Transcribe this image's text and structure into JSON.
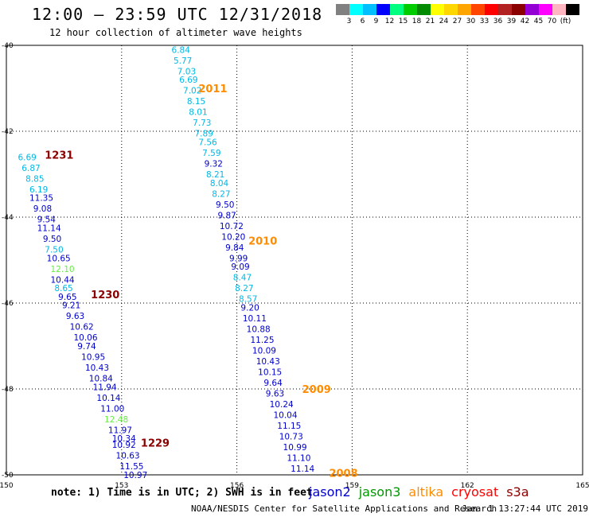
{
  "header": {
    "title": "12:00 – 23:59 UTC 12/31/2018",
    "subtitle": "12 hour collection of altimeter wave heights"
  },
  "legend": {
    "colors": [
      "#808080",
      "#00ffff",
      "#00bfff",
      "#0000ff",
      "#00ff7f",
      "#00cd00",
      "#008b00",
      "#ffff00",
      "#ffd700",
      "#ffa500",
      "#ff4500",
      "#ff0000",
      "#b22222",
      "#8b0000",
      "#9400d3",
      "#ff00ff",
      "#ffb6c1",
      "#000000"
    ],
    "labels": [
      "3",
      "6",
      "9",
      "12",
      "15",
      "18",
      "21",
      "24",
      "27",
      "30",
      "33",
      "36",
      "39",
      "42",
      "45",
      "70",
      "(ft)"
    ]
  },
  "chart_data": {
    "type": "scatter",
    "lon_range": [
      150,
      165
    ],
    "lat_range": [
      -50,
      -40
    ],
    "lon_ticks": [
      {
        "value": 150,
        "label": "150"
      },
      {
        "value": 153,
        "label": "153"
      },
      {
        "value": 156,
        "label": "156"
      },
      {
        "value": 159,
        "label": "159"
      },
      {
        "value": 162,
        "label": "162"
      },
      {
        "value": 165,
        "label": "165"
      }
    ],
    "lat_ticks": [
      {
        "value": -40,
        "label": "-40"
      },
      {
        "value": -42,
        "label": "-42"
      },
      {
        "value": -44,
        "label": "-44"
      },
      {
        "value": -46,
        "label": "-46"
      },
      {
        "value": -48,
        "label": "-48"
      },
      {
        "value": -50,
        "label": "-50"
      }
    ],
    "time_labels": [
      {
        "text": "1231",
        "lon": 151.0,
        "lat": -42.55,
        "color": "#8b0000"
      },
      {
        "text": "1230",
        "lon": 152.2,
        "lat": -45.8,
        "color": "#8b0000"
      },
      {
        "text": "1229",
        "lon": 153.5,
        "lat": -49.25,
        "color": "#8b0000"
      },
      {
        "text": "2011",
        "lon": 155.0,
        "lat": -41.0,
        "color": "#ff8c00"
      },
      {
        "text": "2010",
        "lon": 156.3,
        "lat": -44.55,
        "color": "#ff8c00"
      },
      {
        "text": "2009",
        "lon": 157.7,
        "lat": -48.0,
        "color": "#ff8c00"
      },
      {
        "text": "2008",
        "lon": 158.4,
        "lat": -49.95,
        "color": "#ff8c00"
      }
    ],
    "series": [
      {
        "points": [
          {
            "lon": 150.3,
            "lat": -42.6,
            "v": "6.69",
            "color": "#00b8e6"
          },
          {
            "lon": 150.4,
            "lat": -42.85,
            "v": "6.87",
            "color": "#00b8e6"
          },
          {
            "lon": 150.5,
            "lat": -43.1,
            "v": "8.85",
            "color": "#00b8e6"
          },
          {
            "lon": 150.6,
            "lat": -43.35,
            "v": "6.19",
            "color": "#00b8e6"
          },
          {
            "lon": 150.6,
            "lat": -43.55,
            "v": "11.35",
            "color": "#0000cd"
          },
          {
            "lon": 150.7,
            "lat": -43.8,
            "v": "9.08",
            "color": "#0000cd"
          },
          {
            "lon": 150.8,
            "lat": -44.05,
            "v": "9.54",
            "color": "#0000cd"
          },
          {
            "lon": 150.8,
            "lat": -44.25,
            "v": "11.14",
            "color": "#0000cd"
          },
          {
            "lon": 150.95,
            "lat": -44.5,
            "v": "9.50",
            "color": "#0000cd"
          },
          {
            "lon": 151.0,
            "lat": -44.75,
            "v": "7.50",
            "color": "#00b8e6"
          },
          {
            "lon": 151.05,
            "lat": -44.95,
            "v": "10.65",
            "color": "#0000cd"
          },
          {
            "lon": 151.15,
            "lat": -45.2,
            "v": "12.10",
            "color": "#66ee44"
          },
          {
            "lon": 151.15,
            "lat": -45.45,
            "v": "10.44",
            "color": "#0000cd"
          },
          {
            "lon": 151.25,
            "lat": -45.65,
            "v": "8.65",
            "color": "#00b8e6"
          },
          {
            "lon": 151.35,
            "lat": -45.85,
            "v": "9.65",
            "color": "#0000cd"
          },
          {
            "lon": 151.45,
            "lat": -46.05,
            "v": "9.21",
            "color": "#0000cd"
          },
          {
            "lon": 151.55,
            "lat": -46.3,
            "v": "9.63",
            "color": "#0000cd"
          },
          {
            "lon": 151.65,
            "lat": -46.55,
            "v": "10.62",
            "color": "#0000cd"
          },
          {
            "lon": 151.75,
            "lat": -46.8,
            "v": "10.06",
            "color": "#0000cd"
          },
          {
            "lon": 151.85,
            "lat": -47.0,
            "v": "9.74",
            "color": "#0000cd"
          },
          {
            "lon": 151.95,
            "lat": -47.25,
            "v": "10.95",
            "color": "#0000cd"
          },
          {
            "lon": 152.05,
            "lat": -47.5,
            "v": "10.43",
            "color": "#0000cd"
          },
          {
            "lon": 152.15,
            "lat": -47.75,
            "v": "10.84",
            "color": "#0000cd"
          },
          {
            "lon": 152.25,
            "lat": -47.95,
            "v": "11.94",
            "color": "#0000cd"
          },
          {
            "lon": 152.35,
            "lat": -48.2,
            "v": "10.14",
            "color": "#0000cd"
          },
          {
            "lon": 152.45,
            "lat": -48.45,
            "v": "11.00",
            "color": "#0000cd"
          },
          {
            "lon": 152.55,
            "lat": -48.7,
            "v": "12.48",
            "color": "#66ee44"
          },
          {
            "lon": 152.65,
            "lat": -48.95,
            "v": "11.97",
            "color": "#0000cd"
          },
          {
            "lon": 152.75,
            "lat": -49.15,
            "v": "10.34",
            "color": "#0000cd"
          },
          {
            "lon": 152.75,
            "lat": -49.3,
            "v": "10.92",
            "color": "#0000cd"
          },
          {
            "lon": 152.85,
            "lat": -49.55,
            "v": "10.63",
            "color": "#0000cd"
          },
          {
            "lon": 152.95,
            "lat": -49.8,
            "v": "11.55",
            "color": "#0000cd"
          },
          {
            "lon": 153.05,
            "lat": -50.0,
            "v": "10.97",
            "color": "#0000cd"
          }
        ]
      },
      {
        "points": [
          {
            "lon": 154.3,
            "lat": -40.1,
            "v": "6.84",
            "color": "#00b8e6"
          },
          {
            "lon": 154.35,
            "lat": -40.35,
            "v": "5.77",
            "color": "#00b8e6"
          },
          {
            "lon": 154.45,
            "lat": -40.6,
            "v": "7.03",
            "color": "#00b8e6"
          },
          {
            "lon": 154.5,
            "lat": -40.8,
            "v": "6.69",
            "color": "#00b8e6"
          },
          {
            "lon": 154.6,
            "lat": -41.05,
            "v": "7.02",
            "color": "#00b8e6"
          },
          {
            "lon": 154.7,
            "lat": -41.3,
            "v": "8.15",
            "color": "#00b8e6"
          },
          {
            "lon": 154.75,
            "lat": -41.55,
            "v": "8.01",
            "color": "#00b8e6"
          },
          {
            "lon": 154.85,
            "lat": -41.8,
            "v": "7.73",
            "color": "#00b8e6"
          },
          {
            "lon": 154.9,
            "lat": -42.05,
            "v": "7.89",
            "color": "#00b8e6"
          },
          {
            "lon": 155.0,
            "lat": -42.25,
            "v": "7.56",
            "color": "#00b8e6"
          },
          {
            "lon": 155.1,
            "lat": -42.5,
            "v": "7.59",
            "color": "#00b8e6"
          },
          {
            "lon": 155.15,
            "lat": -42.75,
            "v": "9.32",
            "color": "#0000cd"
          },
          {
            "lon": 155.2,
            "lat": -43.0,
            "v": "8.21",
            "color": "#00b8e6"
          },
          {
            "lon": 155.3,
            "lat": -43.2,
            "v": "8.04",
            "color": "#00b8e6"
          },
          {
            "lon": 155.35,
            "lat": -43.45,
            "v": "8.27",
            "color": "#00b8e6"
          },
          {
            "lon": 155.45,
            "lat": -43.7,
            "v": "9.50",
            "color": "#0000cd"
          },
          {
            "lon": 155.5,
            "lat": -43.95,
            "v": "9.87",
            "color": "#0000cd"
          },
          {
            "lon": 155.55,
            "lat": -44.2,
            "v": "10.72",
            "color": "#0000cd"
          },
          {
            "lon": 155.6,
            "lat": -44.45,
            "v": "10.20",
            "color": "#0000cd"
          },
          {
            "lon": 155.7,
            "lat": -44.7,
            "v": "9.84",
            "color": "#0000cd"
          },
          {
            "lon": 155.8,
            "lat": -44.95,
            "v": "9.99",
            "color": "#0000cd"
          },
          {
            "lon": 155.85,
            "lat": -45.15,
            "v": "9.09",
            "color": "#0000cd"
          },
          {
            "lon": 155.9,
            "lat": -45.4,
            "v": "8.47",
            "color": "#00b8e6"
          },
          {
            "lon": 155.95,
            "lat": -45.65,
            "v": "8.27",
            "color": "#00b8e6"
          },
          {
            "lon": 156.05,
            "lat": -45.9,
            "v": "8.57",
            "color": "#00b8e6"
          },
          {
            "lon": 156.1,
            "lat": -46.1,
            "v": "9.20",
            "color": "#0000cd"
          },
          {
            "lon": 156.15,
            "lat": -46.35,
            "v": "10.11",
            "color": "#0000cd"
          },
          {
            "lon": 156.25,
            "lat": -46.6,
            "v": "10.88",
            "color": "#0000cd"
          },
          {
            "lon": 156.35,
            "lat": -46.85,
            "v": "11.25",
            "color": "#0000cd"
          },
          {
            "lon": 156.4,
            "lat": -47.1,
            "v": "10.09",
            "color": "#0000cd"
          },
          {
            "lon": 156.5,
            "lat": -47.35,
            "v": "10.43",
            "color": "#0000cd"
          },
          {
            "lon": 156.55,
            "lat": -47.6,
            "v": "10.15",
            "color": "#0000cd"
          },
          {
            "lon": 156.7,
            "lat": -47.85,
            "v": "9.64",
            "color": "#0000cd"
          },
          {
            "lon": 156.75,
            "lat": -48.1,
            "v": "9.63",
            "color": "#0000cd"
          },
          {
            "lon": 156.85,
            "lat": -48.35,
            "v": "10.24",
            "color": "#0000cd"
          },
          {
            "lon": 156.95,
            "lat": -48.6,
            "v": "10.04",
            "color": "#0000cd"
          },
          {
            "lon": 157.05,
            "lat": -48.85,
            "v": "11.15",
            "color": "#0000cd"
          },
          {
            "lon": 157.1,
            "lat": -49.1,
            "v": "10.73",
            "color": "#0000cd"
          },
          {
            "lon": 157.2,
            "lat": -49.35,
            "v": "10.99",
            "color": "#0000cd"
          },
          {
            "lon": 157.3,
            "lat": -49.6,
            "v": "11.10",
            "color": "#0000cd"
          },
          {
            "lon": 157.4,
            "lat": -49.85,
            "v": "11.14",
            "color": "#0000cd"
          }
        ]
      }
    ]
  },
  "footer": {
    "note": "note: 1) Time is in UTC; 2) SWH is in feet",
    "satellites": [
      {
        "name": "jason2",
        "color": "#0000cd"
      },
      {
        "name": "jason3",
        "color": "#009900"
      },
      {
        "name": "altika",
        "color": "#ff8c00"
      },
      {
        "name": "cryosat",
        "color": "#ff0000"
      },
      {
        "name": "s3a",
        "color": "#8b0000"
      }
    ],
    "credit": "NOAA/NESDIS Center for Satellite Applications and Research",
    "timestamp": "Jan  1 13:27:44 UTC 2019"
  }
}
